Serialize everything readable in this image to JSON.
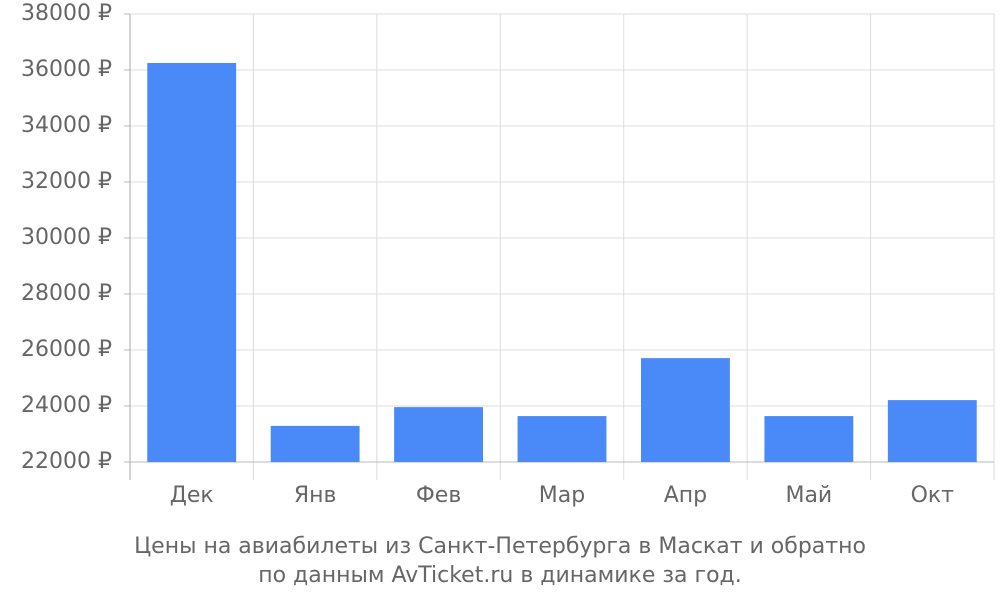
{
  "chart_data": {
    "type": "bar",
    "title": "Цены на авиабилеты из Санкт-Петербурга в Маскат и обратно",
    "subtitle": "по данным AvTicket.ru в динамике за год.",
    "categories": [
      "Дек",
      "Янв",
      "Фев",
      "Мар",
      "Апр",
      "Май",
      "Окт"
    ],
    "values": [
      36250,
      23290,
      23960,
      23640,
      25710,
      23640,
      24210
    ],
    "color": "#4a89f8",
    "ylim": [
      22000,
      38000
    ],
    "yticks": [
      {
        "value": 22000,
        "label": "22000 ₽"
      },
      {
        "value": 24000,
        "label": "24000 ₽"
      },
      {
        "value": 26000,
        "label": "26000 ₽"
      },
      {
        "value": 28000,
        "label": "28000 ₽"
      },
      {
        "value": 30000,
        "label": "30000 ₽"
      },
      {
        "value": 32000,
        "label": "32000 ₽"
      },
      {
        "value": 34000,
        "label": "34000 ₽"
      },
      {
        "value": 36000,
        "label": "36000 ₽"
      },
      {
        "value": 38000,
        "label": "38000 ₽"
      }
    ],
    "grid": true
  }
}
